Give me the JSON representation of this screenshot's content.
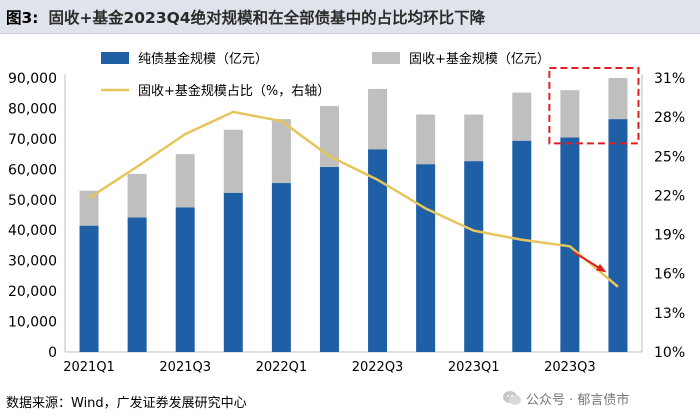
{
  "header": {
    "figure_label": "图3:",
    "title_text": "固收+基金2023Q4绝对规模和在全部债基中的占比均环比下降"
  },
  "footer": {
    "source": "数据来源：Wind，广发证券发展研究中心",
    "watermark": "公众号 · 郁言债市"
  },
  "chart_data": {
    "type": "bar",
    "stacked": true,
    "categories": [
      "2021Q1",
      "2021Q2",
      "2021Q3",
      "2021Q4",
      "2022Q1",
      "2022Q2",
      "2022Q3",
      "2022Q4",
      "2023Q1",
      "2023Q2",
      "2023Q3",
      "2023Q4"
    ],
    "x_tick_labels": [
      "2021Q1",
      "",
      "2021Q3",
      "",
      "2022Q1",
      "",
      "2022Q3",
      "",
      "2023Q1",
      "",
      "2023Q3",
      ""
    ],
    "series": [
      {
        "name": "纯债基金规模（亿元）",
        "type": "bar",
        "axis": "left",
        "color": "#1f5fa6",
        "values": [
          41500,
          44200,
          47500,
          52300,
          55500,
          60800,
          66600,
          61700,
          62700,
          69400,
          70500,
          76500
        ]
      },
      {
        "name": "固收+基金规模（亿元）",
        "type": "bar",
        "axis": "left",
        "color": "#bfbfbf",
        "values": [
          11500,
          14300,
          17500,
          20700,
          21000,
          20000,
          19800,
          16300,
          15300,
          15800,
          15500,
          13500
        ]
      },
      {
        "name": "固收+基金规模占比（%，右轴）",
        "type": "line",
        "axis": "right",
        "color": "#e6c55a",
        "values": [
          21.8,
          24.2,
          26.7,
          28.4,
          27.7,
          25.0,
          23.2,
          21.0,
          19.3,
          18.6,
          18.1,
          15.0
        ]
      }
    ],
    "ylim_left": [
      0,
      90000
    ],
    "yticks_left": [
      "0",
      "10,000",
      "20,000",
      "30,000",
      "40,000",
      "50,000",
      "60,000",
      "70,000",
      "80,000",
      "90,000"
    ],
    "ylim_right": [
      10,
      31
    ],
    "yticks_right": [
      "10%",
      "13%",
      "16%",
      "19%",
      "22%",
      "25%",
      "28%",
      "31%"
    ],
    "legend_placement": "top",
    "annotations": {
      "highlight_box": {
        "categories": [
          "2023Q3",
          "2023Q4"
        ],
        "color": "#e02020",
        "style": "dashed"
      },
      "arrow": {
        "from": "2023Q3",
        "to": "2023Q4",
        "color": "#e02020"
      }
    }
  }
}
